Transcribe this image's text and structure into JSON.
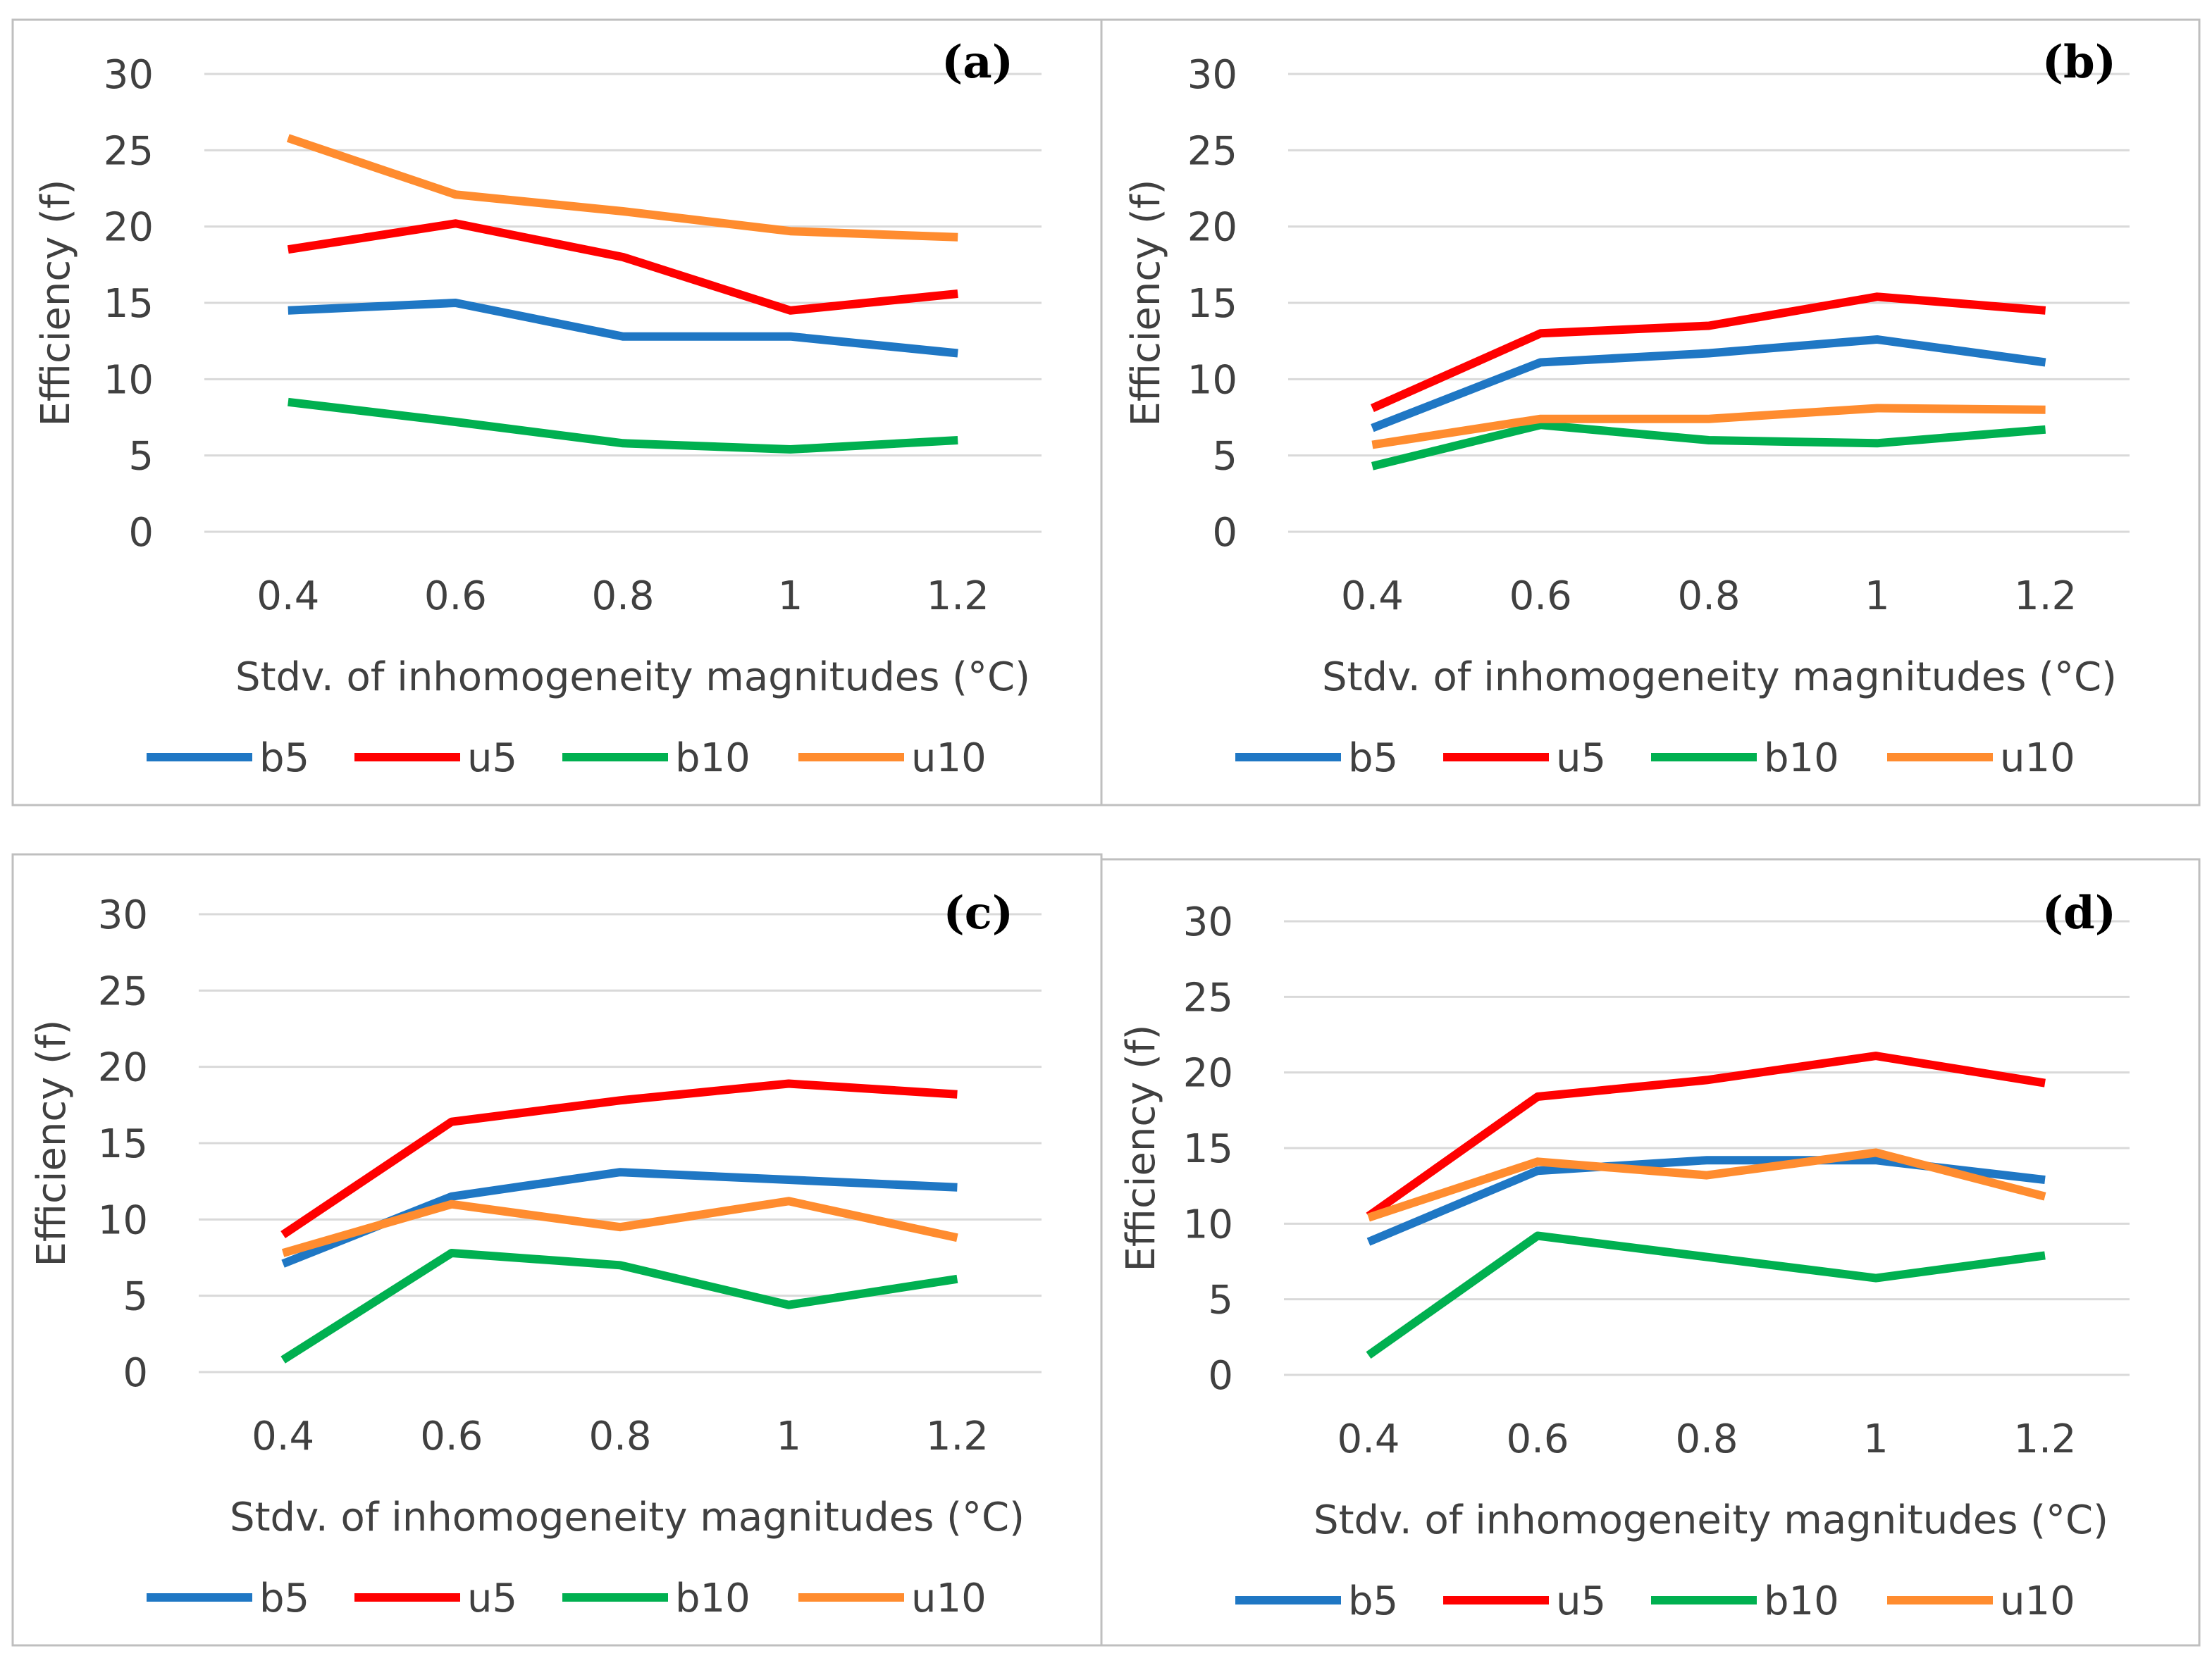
{
  "colors": {
    "b5": "#1f77c4",
    "u5": "#ff0000",
    "b10": "#00b050",
    "u10": "#ff8c2f",
    "grid": "#d9d9d9",
    "frame": "#bfbfbf"
  },
  "chart_data": [
    {
      "type": "line",
      "panel_label": "(a)",
      "xlabel": "Stdv. of inhomogeneity magnitudes (°C)",
      "ylabel": "Efficiency (f)",
      "categories": [
        "0.4",
        "0.6",
        "0.8",
        "1",
        "1.2"
      ],
      "ylim": [
        0,
        30
      ],
      "yticks": [
        "0",
        "5",
        "10",
        "15",
        "20",
        "25",
        "30"
      ],
      "legend": "bottom",
      "series": [
        {
          "name": "b5",
          "values": [
            14.5,
            15.0,
            12.8,
            12.8,
            11.7
          ]
        },
        {
          "name": "u5",
          "values": [
            18.5,
            20.2,
            18.0,
            14.5,
            15.6
          ]
        },
        {
          "name": "b10",
          "values": [
            8.5,
            7.2,
            5.8,
            5.4,
            6.0
          ]
        },
        {
          "name": "u10",
          "values": [
            25.8,
            22.1,
            21.0,
            19.7,
            19.3
          ]
        }
      ]
    },
    {
      "type": "line",
      "panel_label": "(b)",
      "xlabel": "Stdv. of inhomogeneity magnitudes (°C)",
      "ylabel": "Efficiency (f)",
      "categories": [
        "0.4",
        "0.6",
        "0.8",
        "1",
        "1.2"
      ],
      "ylim": [
        0,
        30
      ],
      "yticks": [
        "0",
        "5",
        "10",
        "15",
        "20",
        "25",
        "30"
      ],
      "legend": "bottom",
      "series": [
        {
          "name": "b5",
          "values": [
            6.8,
            11.1,
            11.7,
            12.6,
            11.1
          ]
        },
        {
          "name": "u5",
          "values": [
            8.1,
            13.0,
            13.5,
            15.4,
            14.5
          ]
        },
        {
          "name": "b10",
          "values": [
            4.3,
            7.0,
            6.0,
            5.8,
            6.7
          ]
        },
        {
          "name": "u10",
          "values": [
            5.7,
            7.4,
            7.4,
            8.1,
            8.0
          ]
        }
      ]
    },
    {
      "type": "line",
      "panel_label": "(c)",
      "xlabel": "Stdv. of inhomogeneity magnitudes (°C)",
      "ylabel": "Efficiency (f)",
      "categories": [
        "0.4",
        "0.6",
        "0.8",
        "1",
        "1.2"
      ],
      "ylim": [
        0,
        30
      ],
      "yticks": [
        "0",
        "5",
        "10",
        "15",
        "20",
        "25",
        "30"
      ],
      "legend": "bottom",
      "series": [
        {
          "name": "b5",
          "values": [
            7.1,
            11.5,
            13.1,
            12.6,
            12.1
          ]
        },
        {
          "name": "u5",
          "values": [
            9.0,
            16.4,
            17.8,
            18.9,
            18.2
          ]
        },
        {
          "name": "b10",
          "values": [
            0.8,
            7.8,
            7.0,
            4.4,
            6.1
          ]
        },
        {
          "name": "u10",
          "values": [
            7.8,
            11.0,
            9.5,
            11.2,
            8.8
          ]
        }
      ]
    },
    {
      "type": "line",
      "panel_label": "(d)",
      "xlabel": "Stdv. of inhomogeneity magnitudes (°C)",
      "ylabel": "Efficiency (f)",
      "categories": [
        "0.4",
        "0.6",
        "0.8",
        "1",
        "1.2"
      ],
      "ylim": [
        0,
        30
      ],
      "yticks": [
        "0",
        "5",
        "10",
        "15",
        "20",
        "25",
        "30"
      ],
      "legend": "bottom",
      "series": [
        {
          "name": "b5",
          "values": [
            8.8,
            13.5,
            14.2,
            14.2,
            12.9
          ]
        },
        {
          "name": "u5",
          "values": [
            10.5,
            18.4,
            19.5,
            21.1,
            19.3
          ]
        },
        {
          "name": "b10",
          "values": [
            1.3,
            9.2,
            7.8,
            6.4,
            7.9
          ]
        },
        {
          "name": "u10",
          "values": [
            10.4,
            14.1,
            13.2,
            14.7,
            11.8
          ]
        }
      ]
    }
  ]
}
